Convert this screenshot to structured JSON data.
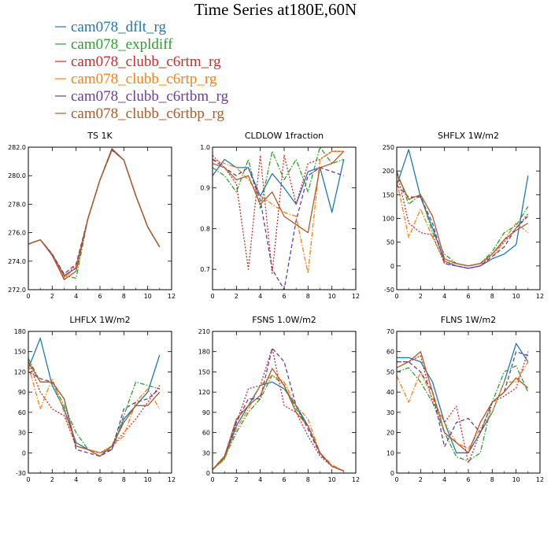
{
  "figure": {
    "title": "Time Series at180E,60N"
  },
  "legend": {
    "entries": [
      {
        "name": "cam078_dflt_rg",
        "color": "#1f77b4",
        "dash": "solid"
      },
      {
        "name": "cam078_expldiff",
        "color": "#2ca02c",
        "dash": "dashdot"
      },
      {
        "name": "cam078_clubb_c6rtm_rg",
        "color": "#d62728",
        "dash": "dot"
      },
      {
        "name": "cam078_clubb_c6rtp_rg",
        "color": "#ff7f0e",
        "dash": "dashdot"
      },
      {
        "name": "cam078_clubb_c6rtbm_rg",
        "color": "#6a3d9a",
        "dash": "dash"
      },
      {
        "name": "cam078_clubb_c6rtbp_rg",
        "color": "#b15928",
        "dash": "solid"
      }
    ]
  },
  "chart_data": [
    {
      "type": "line",
      "title": "TS   1K",
      "x": [
        0,
        1,
        2,
        3,
        4,
        5,
        6,
        7,
        8,
        9,
        10,
        11
      ],
      "xlim": [
        0,
        12
      ],
      "xticks": [
        0,
        2,
        4,
        6,
        8,
        10,
        12
      ],
      "ylim": [
        272,
        282
      ],
      "yticks": [
        272,
        274,
        276,
        278,
        280,
        282
      ],
      "ytick_labels": [
        "272.0",
        "274.0",
        "276.0",
        "278.0",
        "280.0",
        "282.0"
      ],
      "series": [
        {
          "name": "cam078_dflt_rg",
          "values": [
            275.2,
            275.5,
            274.5,
            273.0,
            273.5,
            277.0,
            279.7,
            281.8,
            281.1,
            278.6,
            276.4,
            275.0
          ]
        },
        {
          "name": "cam078_expldiff",
          "values": [
            275.2,
            275.5,
            274.5,
            273.0,
            272.8,
            277.0,
            279.7,
            281.9,
            281.1,
            278.6,
            276.4,
            275.0
          ]
        },
        {
          "name": "cam078_clubb_c6rtm_rg",
          "values": [
            275.2,
            275.5,
            274.5,
            272.9,
            273.7,
            277.0,
            279.7,
            281.8,
            281.1,
            278.6,
            276.4,
            275.0
          ]
        },
        {
          "name": "cam078_clubb_c6rtp_rg",
          "values": [
            275.2,
            275.5,
            274.5,
            272.8,
            273.6,
            277.0,
            279.7,
            281.8,
            281.1,
            278.6,
            276.4,
            275.0
          ]
        },
        {
          "name": "cam078_clubb_c6rtbm_rg",
          "values": [
            275.2,
            275.5,
            274.5,
            273.1,
            273.8,
            277.0,
            279.7,
            281.8,
            281.1,
            278.6,
            276.4,
            275.0
          ]
        },
        {
          "name": "cam078_clubb_c6rtbp_rg",
          "values": [
            275.2,
            275.5,
            274.4,
            272.7,
            273.3,
            277.0,
            279.7,
            281.9,
            281.1,
            278.6,
            276.4,
            275.0
          ]
        }
      ]
    },
    {
      "type": "line",
      "title": "CLDLOW   1fraction",
      "x": [
        0,
        1,
        2,
        3,
        4,
        5,
        6,
        7,
        8,
        9,
        10,
        11
      ],
      "xlim": [
        0,
        12
      ],
      "xticks": [
        0,
        2,
        4,
        6,
        8,
        10,
        12
      ],
      "ylim": [
        0.65,
        1.0
      ],
      "yticks": [
        0.7,
        0.8,
        0.9,
        1.0
      ],
      "ytick_labels": [
        "0.7",
        "0.8",
        "0.9",
        "1.0"
      ],
      "series": [
        {
          "name": "cam078_dflt_rg",
          "values": [
            0.93,
            0.97,
            0.95,
            0.95,
            0.88,
            0.935,
            0.9,
            0.86,
            0.94,
            0.95,
            0.84,
            0.97
          ]
        },
        {
          "name": "cam078_expldiff",
          "values": [
            0.95,
            0.93,
            0.89,
            0.97,
            0.85,
            0.99,
            0.92,
            0.97,
            0.89,
            1.0,
            0.96,
            0.97
          ]
        },
        {
          "name": "cam078_clubb_c6rtm_rg",
          "values": [
            0.98,
            0.95,
            0.91,
            0.7,
            0.98,
            0.69,
            0.98,
            0.86,
            0.96,
            0.97,
            0.99,
            0.99
          ]
        },
        {
          "name": "cam078_clubb_c6rtp_rg",
          "values": [
            0.97,
            0.96,
            0.95,
            0.92,
            0.88,
            0.86,
            0.84,
            0.83,
            0.69,
            0.97,
            0.99,
            0.99
          ]
        },
        {
          "name": "cam078_clubb_c6rtbm_rg",
          "values": [
            0.97,
            0.95,
            0.93,
            0.95,
            0.87,
            0.7,
            0.65,
            0.82,
            0.93,
            0.95,
            0.94,
            0.93
          ]
        },
        {
          "name": "cam078_clubb_c6rtbp_rg",
          "values": [
            0.96,
            0.95,
            0.92,
            0.93,
            0.86,
            0.89,
            0.83,
            0.81,
            0.79,
            0.95,
            0.96,
            0.99
          ]
        }
      ]
    },
    {
      "type": "line",
      "title": "SHFLX   1W/m2",
      "x": [
        0,
        1,
        2,
        3,
        4,
        5,
        6,
        7,
        8,
        9,
        10,
        11
      ],
      "xlim": [
        0,
        12
      ],
      "xticks": [
        0,
        2,
        4,
        6,
        8,
        10,
        12
      ],
      "ylim": [
        -50,
        250
      ],
      "yticks": [
        -50,
        0,
        50,
        100,
        150,
        200,
        250
      ],
      "ytick_labels": [
        "-50",
        "0",
        "50",
        "100",
        "150",
        "200",
        "250"
      ],
      "series": [
        {
          "name": "cam078_dflt_rg",
          "values": [
            170,
            245,
            145,
            80,
            10,
            0,
            -5,
            0,
            15,
            25,
            45,
            190
          ]
        },
        {
          "name": "cam078_expldiff",
          "values": [
            200,
            130,
            150,
            70,
            25,
            5,
            0,
            5,
            30,
            70,
            85,
            125
          ]
        },
        {
          "name": "cam078_clubb_c6rtm_rg",
          "values": [
            200,
            90,
            70,
            65,
            5,
            0,
            -5,
            0,
            25,
            50,
            80,
            110
          ]
        },
        {
          "name": "cam078_clubb_c6rtp_rg",
          "values": [
            180,
            60,
            120,
            60,
            10,
            5,
            0,
            5,
            15,
            55,
            90,
            70
          ]
        },
        {
          "name": "cam078_clubb_c6rtbm_rg",
          "values": [
            170,
            145,
            145,
            90,
            5,
            0,
            -5,
            0,
            20,
            40,
            80,
            105
          ]
        },
        {
          "name": "cam078_clubb_c6rtbp_rg",
          "values": [
            195,
            140,
            150,
            105,
            15,
            5,
            0,
            5,
            25,
            55,
            75,
            90
          ]
        }
      ]
    },
    {
      "type": "line",
      "title": "LHFLX   1W/m2",
      "x": [
        0,
        1,
        2,
        3,
        4,
        5,
        6,
        7,
        8,
        9,
        10,
        11
      ],
      "xlim": [
        0,
        12
      ],
      "xticks": [
        0,
        2,
        4,
        6,
        8,
        10,
        12
      ],
      "ylim": [
        -30,
        180
      ],
      "yticks": [
        -30,
        0,
        30,
        60,
        90,
        120,
        150,
        180
      ],
      "ytick_labels": [
        "-30",
        "0",
        "30",
        "60",
        "90",
        "120",
        "150",
        "180"
      ],
      "series": [
        {
          "name": "cam078_dflt_rg",
          "values": [
            125,
            170,
            100,
            65,
            15,
            5,
            0,
            5,
            50,
            70,
            90,
            145
          ]
        },
        {
          "name": "cam078_expldiff",
          "values": [
            140,
            105,
            105,
            70,
            30,
            5,
            -5,
            10,
            55,
            105,
            100,
            95
          ]
        },
        {
          "name": "cam078_clubb_c6rtm_rg",
          "values": [
            135,
            90,
            65,
            55,
            10,
            5,
            0,
            10,
            30,
            50,
            75,
            100
          ]
        },
        {
          "name": "cam078_clubb_c6rtp_rg",
          "values": [
            130,
            65,
            110,
            60,
            10,
            5,
            0,
            10,
            25,
            75,
            95,
            65
          ]
        },
        {
          "name": "cam078_clubb_c6rtbm_rg",
          "values": [
            120,
            110,
            105,
            80,
            5,
            0,
            -5,
            5,
            65,
            75,
            80,
            95
          ]
        },
        {
          "name": "cam078_clubb_c6rtbp_rg",
          "values": [
            135,
            105,
            105,
            80,
            10,
            5,
            -5,
            10,
            45,
            70,
            70,
            90
          ]
        }
      ]
    },
    {
      "type": "line",
      "title": "FSNS   1.0W/m2",
      "x": [
        0,
        1,
        2,
        3,
        4,
        5,
        6,
        7,
        8,
        9,
        10,
        11
      ],
      "xlim": [
        0,
        12
      ],
      "xticks": [
        0,
        2,
        4,
        6,
        8,
        10,
        12
      ],
      "ylim": [
        0,
        210
      ],
      "yticks": [
        0,
        30,
        60,
        90,
        120,
        150,
        180,
        210
      ],
      "ytick_labels": [
        "0",
        "30",
        "60",
        "90",
        "120",
        "150",
        "180",
        "210"
      ],
      "series": [
        {
          "name": "cam078_dflt_rg",
          "values": [
            5,
            22,
            70,
            100,
            130,
            135,
            125,
            100,
            70,
            30,
            10,
            3
          ]
        },
        {
          "name": "cam078_expldiff",
          "values": [
            5,
            22,
            60,
            90,
            110,
            145,
            130,
            95,
            70,
            30,
            10,
            3
          ]
        },
        {
          "name": "cam078_clubb_c6rtm_rg",
          "values": [
            5,
            25,
            75,
            125,
            130,
            185,
            100,
            90,
            55,
            25,
            10,
            3
          ]
        },
        {
          "name": "cam078_clubb_c6rtp_rg",
          "values": [
            5,
            20,
            65,
            95,
            130,
            145,
            135,
            100,
            80,
            30,
            12,
            3
          ]
        },
        {
          "name": "cam078_clubb_c6rtbm_rg",
          "values": [
            5,
            25,
            75,
            110,
            110,
            185,
            165,
            100,
            65,
            28,
            10,
            3
          ]
        },
        {
          "name": "cam078_clubb_c6rtbp_rg",
          "values": [
            5,
            25,
            80,
            100,
            115,
            155,
            130,
            90,
            70,
            30,
            10,
            3
          ]
        }
      ]
    },
    {
      "type": "line",
      "title": "FLNS   1W/m2",
      "x": [
        0,
        1,
        2,
        3,
        4,
        5,
        6,
        7,
        8,
        9,
        10,
        11
      ],
      "xlim": [
        0,
        12
      ],
      "xticks": [
        0,
        2,
        4,
        6,
        8,
        10,
        12
      ],
      "ylim": [
        0,
        70
      ],
      "yticks": [
        0,
        10,
        20,
        30,
        40,
        50,
        60,
        70
      ],
      "ytick_labels": [
        "0",
        "10",
        "20",
        "30",
        "40",
        "50",
        "60",
        "70"
      ],
      "series": [
        {
          "name": "cam078_dflt_rg",
          "values": [
            57,
            57,
            55,
            45,
            25,
            10,
            10,
            20,
            30,
            45,
            64,
            55
          ]
        },
        {
          "name": "cam078_expldiff",
          "values": [
            50,
            52,
            45,
            35,
            20,
            8,
            6,
            10,
            35,
            50,
            53,
            40
          ]
        },
        {
          "name": "cam078_clubb_c6rtm_rg",
          "values": [
            55,
            55,
            58,
            35,
            25,
            33,
            5,
            20,
            35,
            38,
            42,
            60
          ]
        },
        {
          "name": "cam078_clubb_c6rtp_rg",
          "values": [
            48,
            35,
            50,
            37,
            25,
            15,
            12,
            22,
            30,
            45,
            45,
            55
          ]
        },
        {
          "name": "cam078_clubb_c6rtbm_rg",
          "values": [
            55,
            55,
            50,
            40,
            13,
            25,
            27,
            20,
            35,
            40,
            60,
            58
          ]
        },
        {
          "name": "cam078_clubb_c6rtbp_rg",
          "values": [
            52,
            55,
            60,
            40,
            20,
            15,
            10,
            25,
            35,
            40,
            47,
            42
          ]
        }
      ]
    }
  ]
}
